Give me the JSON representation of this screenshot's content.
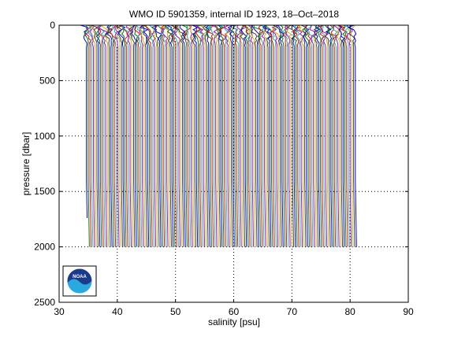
{
  "chart_data": {
    "type": "line",
    "title": "WMO ID 5901359, internal ID 1923, 18–Oct–2018",
    "xlabel": "salinity [psu]",
    "ylabel": "pressure [dbar]",
    "xlim": [
      30,
      90
    ],
    "ylim": [
      0,
      2500
    ],
    "y_reversed": true,
    "grid": true,
    "x_ticks": [
      "30",
      "40",
      "50",
      "60",
      "70",
      "80",
      "90"
    ],
    "y_ticks": [
      "0",
      "500",
      "1000",
      "1500",
      "2000",
      "2500"
    ],
    "profile_colors": [
      "#0000ff",
      "#008000",
      "#ff0000",
      "#00bfbf",
      "#bf00bf",
      "#bfbf00",
      "#404040"
    ],
    "profiles_offset": {
      "first_base_salinity": 34.7,
      "last_base_salinity": 80.9,
      "step_salinity": 0.3,
      "max_pressure": 2000
    },
    "logo": {
      "icon": "noaa-logo-icon",
      "text": "NOAA"
    }
  }
}
